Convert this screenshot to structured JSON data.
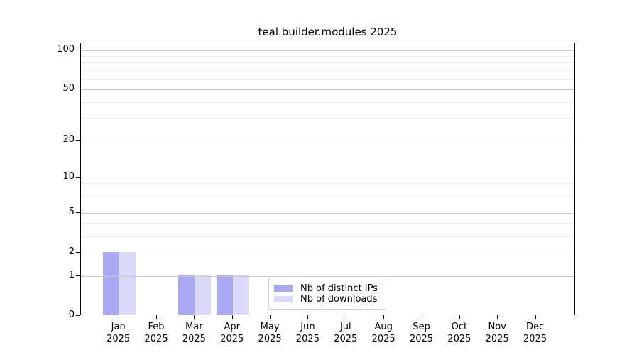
{
  "title": "teal.builder.modules 2025",
  "chart_data": {
    "type": "bar",
    "title": "teal.builder.modules 2025",
    "categories": [
      "Jan",
      "Feb",
      "Mar",
      "Apr",
      "May",
      "Jun",
      "Jul",
      "Aug",
      "Sep",
      "Oct",
      "Nov",
      "Dec"
    ],
    "x_tick_year": "2025",
    "series": [
      {
        "name": "Nb of distinct IPs",
        "color": "#a9a9f2",
        "values": [
          2,
          0,
          1,
          1,
          0,
          0,
          0,
          0,
          0,
          0,
          0,
          0
        ]
      },
      {
        "name": "Nb of downloads",
        "color": "#dadaf8",
        "values": [
          2,
          0,
          1,
          1,
          0,
          0,
          0,
          0,
          0,
          0,
          0,
          0
        ]
      }
    ],
    "xlabel": "",
    "ylabel": "",
    "yscale": "log1p",
    "ylim": [
      0,
      100
    ],
    "y_major_ticks": [
      0,
      1,
      2,
      5,
      10,
      20,
      50,
      100
    ],
    "y_minor_ticks": [
      3,
      4,
      6,
      7,
      8,
      9,
      30,
      40,
      60,
      70,
      80,
      90
    ],
    "grid": "on",
    "legend_position": "lower-center-inside"
  },
  "colors": {
    "background": "#ffffff",
    "axis": "#000000",
    "major_grid": "#c9c9c9",
    "minor_grid": "#ededed",
    "bar_distinct_ips": "#a9a9f2",
    "bar_downloads": "#dadaf8",
    "legend_border": "#cccccc",
    "text": "#000000"
  }
}
